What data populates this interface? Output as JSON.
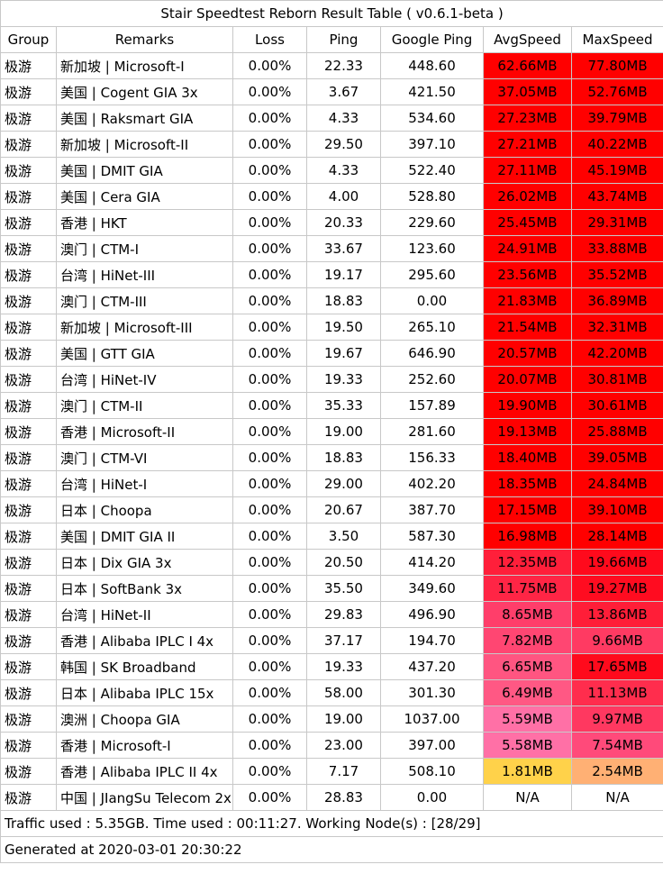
{
  "title": "Stair Speedtest Reborn Result Table ( v0.6.1-beta )",
  "headers": [
    "Group",
    "Remarks",
    "Loss",
    "Ping",
    "Google Ping",
    "AvgSpeed",
    "MaxSpeed"
  ],
  "rows": [
    {
      "group": "极游",
      "remarks": "新加坡 | Microsoft-I",
      "loss": "0.00%",
      "ping": "22.33",
      "gping": "448.60",
      "avg": "62.66MB",
      "max": "77.80MB",
      "avg_color": "#ff0000",
      "max_color": "#ff0000"
    },
    {
      "group": "极游",
      "remarks": "美国 | Cogent GIA 3x",
      "loss": "0.00%",
      "ping": "3.67",
      "gping": "421.50",
      "avg": "37.05MB",
      "max": "52.76MB",
      "avg_color": "#ff0000",
      "max_color": "#ff0000"
    },
    {
      "group": "极游",
      "remarks": "美国 | Raksmart GIA",
      "loss": "0.00%",
      "ping": "4.33",
      "gping": "534.60",
      "avg": "27.23MB",
      "max": "39.79MB",
      "avg_color": "#ff0000",
      "max_color": "#ff0000"
    },
    {
      "group": "极游",
      "remarks": "新加坡 | Microsoft-II",
      "loss": "0.00%",
      "ping": "29.50",
      "gping": "397.10",
      "avg": "27.21MB",
      "max": "40.22MB",
      "avg_color": "#ff0000",
      "max_color": "#ff0000"
    },
    {
      "group": "极游",
      "remarks": "美国 | DMIT GIA",
      "loss": "0.00%",
      "ping": "4.33",
      "gping": "522.40",
      "avg": "27.11MB",
      "max": "45.19MB",
      "avg_color": "#ff0000",
      "max_color": "#ff0000"
    },
    {
      "group": "极游",
      "remarks": "美国 | Cera GIA",
      "loss": "0.00%",
      "ping": "4.00",
      "gping": "528.80",
      "avg": "26.02MB",
      "max": "43.74MB",
      "avg_color": "#ff0000",
      "max_color": "#ff0000"
    },
    {
      "group": "极游",
      "remarks": "香港 | HKT",
      "loss": "0.00%",
      "ping": "20.33",
      "gping": "229.60",
      "avg": "25.45MB",
      "max": "29.31MB",
      "avg_color": "#ff0000",
      "max_color": "#ff0000"
    },
    {
      "group": "极游",
      "remarks": "澳门 | CTM-I",
      "loss": "0.00%",
      "ping": "33.67",
      "gping": "123.60",
      "avg": "24.91MB",
      "max": "33.88MB",
      "avg_color": "#ff0000",
      "max_color": "#ff0000"
    },
    {
      "group": "极游",
      "remarks": "台湾 | HiNet-III",
      "loss": "0.00%",
      "ping": "19.17",
      "gping": "295.60",
      "avg": "23.56MB",
      "max": "35.52MB",
      "avg_color": "#ff0000",
      "max_color": "#ff0000"
    },
    {
      "group": "极游",
      "remarks": "澳门 | CTM-III",
      "loss": "0.00%",
      "ping": "18.83",
      "gping": "0.00",
      "avg": "21.83MB",
      "max": "36.89MB",
      "avg_color": "#ff0000",
      "max_color": "#ff0000"
    },
    {
      "group": "极游",
      "remarks": "新加坡 | Microsoft-III",
      "loss": "0.00%",
      "ping": "19.50",
      "gping": "265.10",
      "avg": "21.54MB",
      "max": "32.31MB",
      "avg_color": "#ff0000",
      "max_color": "#ff0000"
    },
    {
      "group": "极游",
      "remarks": "美国 | GTT GIA",
      "loss": "0.00%",
      "ping": "19.67",
      "gping": "646.90",
      "avg": "20.57MB",
      "max": "42.20MB",
      "avg_color": "#ff0000",
      "max_color": "#ff0000"
    },
    {
      "group": "极游",
      "remarks": "台湾 | HiNet-IV",
      "loss": "0.00%",
      "ping": "19.33",
      "gping": "252.60",
      "avg": "20.07MB",
      "max": "30.81MB",
      "avg_color": "#ff0000",
      "max_color": "#ff0000"
    },
    {
      "group": "极游",
      "remarks": "澳门 | CTM-II",
      "loss": "0.00%",
      "ping": "35.33",
      "gping": "157.89",
      "avg": "19.90MB",
      "max": "30.61MB",
      "avg_color": "#ff0000",
      "max_color": "#ff0000"
    },
    {
      "group": "极游",
      "remarks": "香港 | Microsoft-II",
      "loss": "0.00%",
      "ping": "19.00",
      "gping": "281.60",
      "avg": "19.13MB",
      "max": "25.88MB",
      "avg_color": "#ff0000",
      "max_color": "#ff0000"
    },
    {
      "group": "极游",
      "remarks": "澳门 | CTM-VI",
      "loss": "0.00%",
      "ping": "18.83",
      "gping": "156.33",
      "avg": "18.40MB",
      "max": "39.05MB",
      "avg_color": "#ff0000",
      "max_color": "#ff0000"
    },
    {
      "group": "极游",
      "remarks": "台湾 | HiNet-I",
      "loss": "0.00%",
      "ping": "29.00",
      "gping": "402.20",
      "avg": "18.35MB",
      "max": "24.84MB",
      "avg_color": "#ff0000",
      "max_color": "#ff0000"
    },
    {
      "group": "极游",
      "remarks": "日本 | Choopa",
      "loss": "0.00%",
      "ping": "20.67",
      "gping": "387.70",
      "avg": "17.15MB",
      "max": "39.10MB",
      "avg_color": "#ff0000",
      "max_color": "#ff0000"
    },
    {
      "group": "极游",
      "remarks": "美国 | DMIT GIA II",
      "loss": "0.00%",
      "ping": "3.50",
      "gping": "587.30",
      "avg": "16.98MB",
      "max": "28.14MB",
      "avg_color": "#ff0000",
      "max_color": "#ff0000"
    },
    {
      "group": "极游",
      "remarks": "日本 | Dix GIA 3x",
      "loss": "0.00%",
      "ping": "20.50",
      "gping": "414.20",
      "avg": "12.35MB",
      "max": "19.66MB",
      "avg_color": "#ff1f3a",
      "max_color": "#ff0a1c"
    },
    {
      "group": "极游",
      "remarks": "日本 | SoftBank 3x",
      "loss": "0.00%",
      "ping": "35.50",
      "gping": "349.60",
      "avg": "11.75MB",
      "max": "19.27MB",
      "avg_color": "#ff2545",
      "max_color": "#ff0c20"
    },
    {
      "group": "极游",
      "remarks": "台湾 | HiNet-II",
      "loss": "0.00%",
      "ping": "29.83",
      "gping": "496.90",
      "avg": "8.65MB",
      "max": "13.86MB",
      "avg_color": "#ff3e6a",
      "max_color": "#ff1e38"
    },
    {
      "group": "极游",
      "remarks": "香港 | Alibaba IPLC I 4x",
      "loss": "0.00%",
      "ping": "37.17",
      "gping": "194.70",
      "avg": "7.82MB",
      "max": "9.66MB",
      "avg_color": "#ff4672",
      "max_color": "#ff3a62"
    },
    {
      "group": "极游",
      "remarks": "韩国 | SK Broadband",
      "loss": "0.00%",
      "ping": "19.33",
      "gping": "437.20",
      "avg": "6.65MB",
      "max": "17.65MB",
      "avg_color": "#ff5581",
      "max_color": "#ff0a1c"
    },
    {
      "group": "极游",
      "remarks": "日本 | Alibaba IPLC 15x",
      "loss": "0.00%",
      "ping": "58.00",
      "gping": "301.30",
      "avg": "6.49MB",
      "max": "11.13MB",
      "avg_color": "#ff5884",
      "max_color": "#ff2d4d"
    },
    {
      "group": "极游",
      "remarks": "澳洲 | Choopa GIA",
      "loss": "0.00%",
      "ping": "19.00",
      "gping": "1037.00",
      "avg": "5.59MB",
      "max": "9.97MB",
      "avg_color": "#ff70a6",
      "max_color": "#ff3860"
    },
    {
      "group": "极游",
      "remarks": "香港 | Microsoft-I",
      "loss": "0.00%",
      "ping": "23.00",
      "gping": "397.00",
      "avg": "5.58MB",
      "max": "7.54MB",
      "avg_color": "#ff70a6",
      "max_color": "#ff4a7a"
    },
    {
      "group": "极游",
      "remarks": "香港 | Alibaba IPLC II 4x",
      "loss": "0.00%",
      "ping": "7.17",
      "gping": "508.10",
      "avg": "1.81MB",
      "max": "2.54MB",
      "avg_color": "#ffd24a",
      "max_color": "#ffb074"
    },
    {
      "group": "极游",
      "remarks": "中国 | JIangSu Telecom 2x",
      "loss": "0.00%",
      "ping": "28.83",
      "gping": "0.00",
      "avg": "N/A",
      "max": "N/A",
      "avg_color": "#ffffff",
      "max_color": "#ffffff"
    }
  ],
  "traffic_line": "Traffic used : 5.35GB. Time used : 00:11:27. Working Node(s) : [28/29]",
  "generated_line": "Generated at 2020-03-01 20:30:22"
}
